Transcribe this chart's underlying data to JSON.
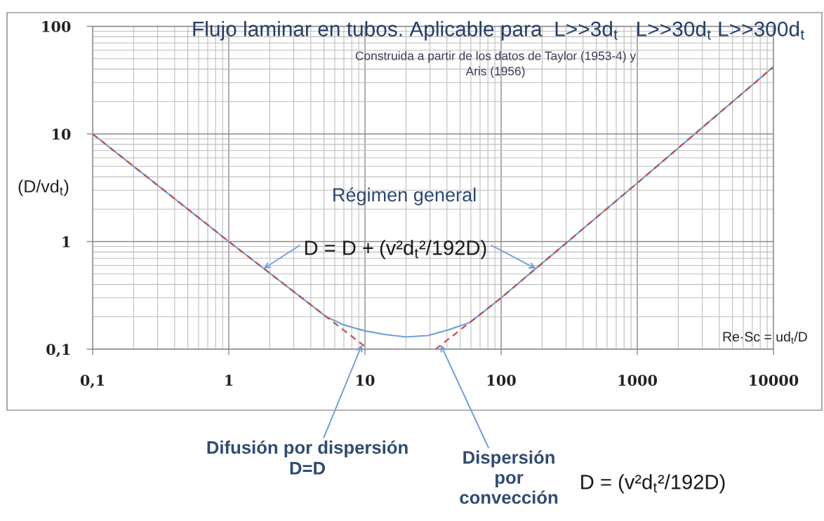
{
  "chart_data": {
    "type": "line",
    "title": "Flujo laminar en tubos. Aplicable para  L>>3d$_{t}$   L>>30d$_{t}$ L>>300d$_{t}$",
    "subtitle": "Construida a partir de los datos de Taylor (1953-4) y\nAris (1956)",
    "xlabel": "Re·Sc = ud$_{t}$/D",
    "ylabel": "(D/vd$_{t}$)",
    "log": "xy",
    "xlim": [
      0.1,
      10000
    ],
    "ylim": [
      0.1,
      100
    ],
    "xticks": [
      {
        "value": 0.1,
        "label": "0,1"
      },
      1,
      10,
      100,
      1000,
      10000
    ],
    "yticks": [
      {
        "value": 0.1,
        "label": "0,1"
      },
      1,
      10,
      100
    ],
    "grid": true,
    "series": [
      {
        "color": "#6f9fd8",
        "line_style": "solid",
        "x": [
          0.1,
          1,
          5.2,
          7,
          10,
          14,
          20,
          29,
          40,
          59,
          100,
          1000,
          10000
        ],
        "values": [
          10,
          1,
          0.2,
          0.168,
          0.148,
          0.137,
          0.13,
          0.134,
          0.15,
          0.177,
          0.3,
          3.5,
          42
        ]
      },
      {
        "color": "#c0504d",
        "line_style": "dashed",
        "x": [
          0.1,
          1,
          10.6
        ],
        "values": [
          10,
          1,
          0.1
        ]
      },
      {
        "color": "#c0504d",
        "line_style": "dashed",
        "x": [
          33,
          100,
          1000,
          10000
        ],
        "values": [
          0.1,
          0.3,
          3.5,
          42
        ]
      }
    ],
    "annotations": [
      "Régimen general",
      {
        "text": "D = D +",
        "x": 1.8,
        "y": 0.56
      },
      {
        "text": "(v²d$_{t}$²/192D)",
        "x": 180,
        "y": 0.56
      },
      {
        "text": "Difusión por dispersión\nD=D",
        "x": 9.5,
        "y": 0.11
      },
      {
        "text": "Dispersión\npor\nconvección",
        "x": 36,
        "y": 0.11
      },
      "D = (v²d$_{t}$²/192D)"
    ]
  }
}
